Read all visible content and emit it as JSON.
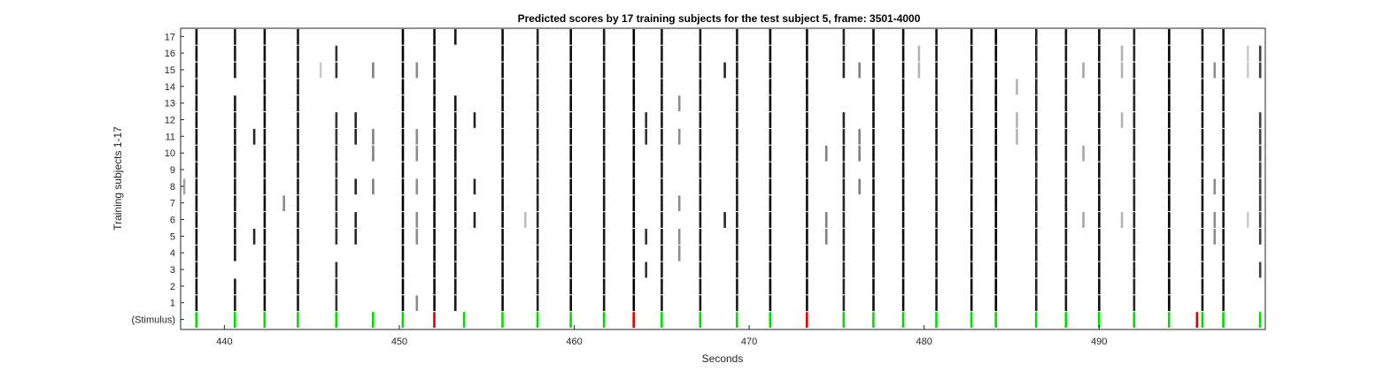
{
  "chart_data": {
    "type": "heatmap",
    "title": "Predicted scores by 17 training subjects for the test subject 5, frame: 3501-4000",
    "xlabel": "Seconds",
    "ylabel": "Training subjects 1-17",
    "xlim": [
      437.5,
      499.5
    ],
    "xticks": [
      440,
      450,
      460,
      470,
      480,
      490
    ],
    "row_labels": [
      "(Stimulus)",
      "1",
      "2",
      "3",
      "4",
      "5",
      "6",
      "7",
      "8",
      "9",
      "10",
      "11",
      "12",
      "13",
      "14",
      "15",
      "16",
      "17"
    ],
    "colors": {
      "stimulus_correct": "#00e000",
      "stimulus_error": "#e00000",
      "background": "#ffffff"
    },
    "stimulus": {
      "green": [
        438.4,
        440.6,
        442.3,
        444.2,
        446.4,
        448.5,
        450.2,
        453.7,
        455.9,
        457.9,
        459.8,
        461.7,
        465.0,
        467.2,
        469.3,
        471.2,
        475.4,
        477.1,
        478.8,
        480.7,
        482.7,
        484.1,
        486.4,
        488.1,
        490.0,
        492.0,
        494.0,
        495.9,
        497.1,
        499.2
      ],
      "red": [
        452.0,
        463.4,
        473.3,
        495.6
      ]
    },
    "events": [
      {
        "t": 438.4,
        "rows": [
          1,
          2,
          3,
          4,
          5,
          6,
          7,
          8,
          9,
          10,
          11,
          12,
          13,
          14,
          15,
          16,
          17
        ],
        "v": 0.95
      },
      {
        "t": 440.6,
        "rows": [
          1,
          2,
          4,
          5,
          6,
          7,
          8,
          9,
          10,
          11,
          12,
          13,
          15,
          16,
          17
        ],
        "v": 0.9
      },
      {
        "t": 442.3,
        "rows": [
          1,
          2,
          3,
          4,
          5,
          6,
          7,
          8,
          9,
          10,
          11,
          12,
          13,
          14,
          15,
          16,
          17
        ],
        "v": 0.95
      },
      {
        "t": 444.2,
        "rows": [
          1,
          2,
          3,
          4,
          5,
          6,
          7,
          8,
          9,
          10,
          11,
          12,
          13,
          14,
          15,
          16,
          17
        ],
        "v": 0.9
      },
      {
        "t": 446.4,
        "rows": [
          1,
          2,
          3,
          5,
          6,
          7,
          8,
          9,
          10,
          11,
          12,
          15,
          16
        ],
        "v": 0.8
      },
      {
        "t": 447.5,
        "rows": [
          5,
          6,
          8,
          11,
          12
        ],
        "v": 0.85
      },
      {
        "t": 448.5,
        "rows": [
          8,
          10,
          11,
          15
        ],
        "v": 0.5
      },
      {
        "t": 450.2,
        "rows": [
          1,
          2,
          3,
          4,
          5,
          6,
          7,
          8,
          9,
          10,
          11,
          12,
          13,
          14,
          15,
          16,
          17
        ],
        "v": 1.0
      },
      {
        "t": 452.0,
        "rows": [
          1,
          2,
          3,
          4,
          5,
          6,
          7,
          8,
          9,
          10,
          11,
          12,
          13,
          14,
          15,
          16,
          17
        ],
        "v": 0.95
      },
      {
        "t": 453.2,
        "rows": [
          1,
          2,
          3,
          4,
          5,
          6,
          7,
          8,
          9,
          10,
          11,
          12,
          13,
          17
        ],
        "v": 0.9
      },
      {
        "t": 454.3,
        "rows": [
          6,
          8,
          12
        ],
        "v": 0.85
      },
      {
        "t": 455.9,
        "rows": [
          1,
          2,
          3,
          4,
          5,
          6,
          7,
          8,
          9,
          10,
          11,
          12,
          13,
          14,
          15,
          16,
          17
        ],
        "v": 0.95
      },
      {
        "t": 457.9,
        "rows": [
          1,
          2,
          3,
          4,
          5,
          6,
          7,
          8,
          9,
          10,
          11,
          12,
          13,
          14,
          15,
          16,
          17
        ],
        "v": 0.85
      },
      {
        "t": 459.8,
        "rows": [
          1,
          2,
          3,
          4,
          5,
          6,
          7,
          8,
          9,
          10,
          11,
          12,
          13,
          14,
          15,
          16,
          17
        ],
        "v": 0.95
      },
      {
        "t": 461.7,
        "rows": [
          1,
          2,
          3,
          4,
          5,
          6,
          7,
          8,
          9,
          10,
          11,
          12,
          13,
          14,
          15,
          16,
          17
        ],
        "v": 0.9
      },
      {
        "t": 463.4,
        "rows": [
          1,
          2,
          3,
          4,
          5,
          6,
          7,
          8,
          9,
          10,
          11,
          12,
          13,
          14,
          15,
          16,
          17
        ],
        "v": 1.0
      },
      {
        "t": 465.0,
        "rows": [
          1,
          2,
          3,
          4,
          5,
          6,
          7,
          8,
          9,
          10,
          11,
          12,
          13,
          14,
          15,
          16,
          17
        ],
        "v": 0.9
      },
      {
        "t": 467.2,
        "rows": [
          1,
          2,
          3,
          4,
          5,
          6,
          7,
          8,
          9,
          10,
          11,
          12,
          13,
          14,
          15,
          16,
          17
        ],
        "v": 0.9
      },
      {
        "t": 469.3,
        "rows": [
          1,
          2,
          3,
          4,
          5,
          6,
          7,
          8,
          9,
          10,
          11,
          12,
          13,
          14,
          15,
          16,
          17
        ],
        "v": 0.9
      },
      {
        "t": 471.2,
        "rows": [
          1,
          2,
          3,
          4,
          5,
          6,
          7,
          8,
          9,
          10,
          11,
          12,
          13,
          14,
          15,
          16,
          17
        ],
        "v": 1.0
      },
      {
        "t": 473.3,
        "rows": [
          1,
          2,
          3,
          4,
          5,
          6,
          7,
          8,
          9,
          10,
          11,
          12,
          13,
          14,
          15,
          16,
          17
        ],
        "v": 0.95
      },
      {
        "t": 475.4,
        "rows": [
          1,
          2,
          3,
          4,
          5,
          6,
          7,
          8,
          9,
          10,
          11,
          12,
          15,
          16,
          17
        ],
        "v": 0.85
      },
      {
        "t": 477.1,
        "rows": [
          1,
          2,
          3,
          4,
          5,
          6,
          7,
          8,
          9,
          10,
          11,
          12,
          13,
          14,
          15,
          16,
          17
        ],
        "v": 0.95
      },
      {
        "t": 478.8,
        "rows": [
          1,
          2,
          3,
          4,
          5,
          6,
          7,
          8,
          9,
          10,
          11,
          12,
          13,
          14,
          15,
          16,
          17
        ],
        "v": 0.95
      },
      {
        "t": 480.7,
        "rows": [
          1,
          2,
          3,
          4,
          5,
          6,
          7,
          8,
          9,
          10,
          11,
          12,
          13,
          14,
          15,
          16,
          17
        ],
        "v": 0.9
      },
      {
        "t": 482.7,
        "rows": [
          1,
          2,
          3,
          4,
          5,
          6,
          7,
          8,
          9,
          10,
          11,
          12,
          13,
          14,
          15,
          16,
          17
        ],
        "v": 0.95
      },
      {
        "t": 484.1,
        "rows": [
          1,
          2,
          3,
          4,
          5,
          6,
          7,
          8,
          9,
          10,
          11,
          12,
          13,
          14,
          15,
          16,
          17
        ],
        "v": 1.0
      },
      {
        "t": 486.4,
        "rows": [
          1,
          2,
          3,
          4,
          5,
          6,
          7,
          8,
          9,
          10,
          11,
          12,
          13,
          14,
          15,
          16,
          17
        ],
        "v": 0.85
      },
      {
        "t": 488.1,
        "rows": [
          1,
          2,
          3,
          4,
          5,
          6,
          7,
          8,
          9,
          10,
          11,
          12,
          13,
          14,
          15,
          16,
          17
        ],
        "v": 0.9
      },
      {
        "t": 490.0,
        "rows": [
          1,
          2,
          3,
          4,
          5,
          6,
          7,
          8,
          9,
          10,
          11,
          12,
          13,
          14,
          15,
          16,
          17
        ],
        "v": 0.95
      },
      {
        "t": 492.0,
        "rows": [
          1,
          2,
          3,
          4,
          5,
          6,
          7,
          8,
          9,
          10,
          11,
          12,
          13,
          14,
          15,
          16,
          17
        ],
        "v": 0.85
      },
      {
        "t": 494.0,
        "rows": [
          1,
          2,
          3,
          4,
          5,
          6,
          7,
          8,
          9,
          10,
          11,
          12,
          13,
          14,
          15,
          16,
          17
        ],
        "v": 1.0
      },
      {
        "t": 495.9,
        "rows": [
          1,
          2,
          3,
          4,
          5,
          6,
          7,
          8,
          9,
          10,
          11,
          12,
          13,
          14,
          15,
          16,
          17
        ],
        "v": 0.9
      },
      {
        "t": 497.1,
        "rows": [
          1,
          2,
          3,
          4,
          5,
          6,
          7,
          8,
          9,
          10,
          11,
          12,
          13,
          14,
          15,
          16,
          17
        ],
        "v": 0.9
      },
      {
        "t": 499.2,
        "rows": [
          3,
          5,
          6,
          7,
          8,
          9,
          10,
          11,
          12,
          15,
          16
        ],
        "v": 0.75
      },
      {
        "t": 437.7,
        "rows": [
          8
        ],
        "v": 0.35
      },
      {
        "t": 441.7,
        "rows": [
          5,
          11
        ],
        "v": 0.85
      },
      {
        "t": 443.4,
        "rows": [
          7
        ],
        "v": 0.45
      },
      {
        "t": 445.5,
        "rows": [
          15
        ],
        "v": 0.2
      },
      {
        "t": 451.0,
        "rows": [
          1,
          5,
          6,
          8,
          10,
          11,
          15
        ],
        "v": 0.45
      },
      {
        "t": 457.2,
        "rows": [
          6
        ],
        "v": 0.25
      },
      {
        "t": 464.1,
        "rows": [
          3,
          5,
          11,
          12
        ],
        "v": 0.8
      },
      {
        "t": 466.0,
        "rows": [
          4,
          5,
          7,
          11,
          13
        ],
        "v": 0.45
      },
      {
        "t": 468.6,
        "rows": [
          6,
          15
        ],
        "v": 0.85
      },
      {
        "t": 474.4,
        "rows": [
          5,
          6,
          10
        ],
        "v": 0.5
      },
      {
        "t": 476.3,
        "rows": [
          8,
          10,
          11,
          15
        ],
        "v": 0.5
      },
      {
        "t": 479.7,
        "rows": [
          15,
          16
        ],
        "v": 0.3
      },
      {
        "t": 485.3,
        "rows": [
          11,
          12,
          14
        ],
        "v": 0.3
      },
      {
        "t": 489.1,
        "rows": [
          6,
          10,
          15
        ],
        "v": 0.35
      },
      {
        "t": 491.3,
        "rows": [
          6,
          12,
          15,
          16
        ],
        "v": 0.3
      },
      {
        "t": 496.6,
        "rows": [
          5,
          6,
          8,
          15
        ],
        "v": 0.45
      },
      {
        "t": 498.5,
        "rows": [
          6,
          15,
          16
        ],
        "v": 0.2
      }
    ]
  }
}
